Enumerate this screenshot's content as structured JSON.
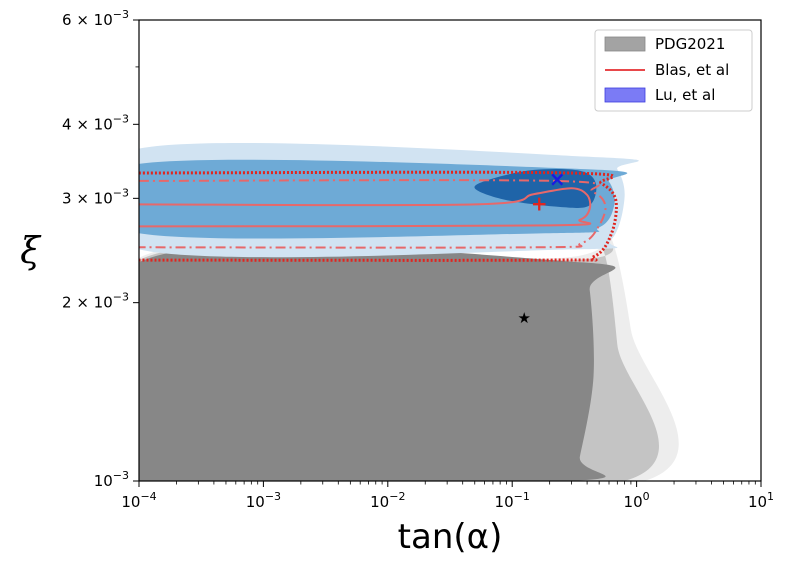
{
  "chart_data": {
    "type": "area",
    "title": "",
    "xlabel": "tan(α)",
    "ylabel": "ξ",
    "x_scale": "log",
    "y_scale": "log",
    "xlim": [
      0.0001,
      10
    ],
    "ylim": [
      0.001,
      0.006
    ],
    "x_ticks": [
      {
        "value": 0.0001,
        "base": "10",
        "exp": "−4"
      },
      {
        "value": 0.001,
        "base": "10",
        "exp": "−3"
      },
      {
        "value": 0.01,
        "base": "10",
        "exp": "−2"
      },
      {
        "value": 0.1,
        "base": "10",
        "exp": "−1"
      },
      {
        "value": 1,
        "base": "10",
        "exp": "0"
      },
      {
        "value": 10,
        "base": "10",
        "exp": "1"
      }
    ],
    "y_ticks": [
      {
        "value": 0.001,
        "mant": "",
        "base": "10",
        "exp": "−3"
      },
      {
        "value": 0.002,
        "mant": "2 × ",
        "base": "10",
        "exp": "−3"
      },
      {
        "value": 0.003,
        "mant": "3 × ",
        "base": "10",
        "exp": "−3"
      },
      {
        "value": 0.004,
        "mant": "4 × ",
        "base": "10",
        "exp": "−3"
      },
      {
        "value": 0.006,
        "mant": "6 × ",
        "base": "10",
        "exp": "−3"
      }
    ],
    "legend": {
      "position": "top-right",
      "entries": [
        {
          "label": "PDG2021",
          "style": "patch",
          "color": "#a3a3a3"
        },
        {
          "label": "Blas, et al",
          "style": "line",
          "color": "#e8474a"
        },
        {
          "label": "Lu, et al",
          "style": "patch",
          "color": "#7b7bf5"
        }
      ]
    },
    "regions": [
      {
        "name": "PDG2021 outer",
        "color": "#ededed",
        "polygon": [
          [
            0.0001,
            0.001
          ],
          [
            0.0001,
            0.00238
          ],
          [
            0.25,
            0.00238
          ],
          [
            0.55,
            0.0027
          ],
          [
            0.9,
            0.0018
          ],
          [
            1.15,
            0.001
          ]
        ]
      },
      {
        "name": "PDG2021 middle",
        "color": "#c4c4c4",
        "polygon": [
          [
            0.0001,
            0.001
          ],
          [
            0.0001,
            0.00236
          ],
          [
            0.3,
            0.00236
          ],
          [
            0.52,
            0.0025
          ],
          [
            0.7,
            0.0017
          ],
          [
            0.8,
            0.001
          ]
        ]
      },
      {
        "name": "PDG2021 inner",
        "color": "#878787",
        "polygon": [
          [
            0.0001,
            0.001
          ],
          [
            0.0001,
            0.00234
          ],
          [
            0.35,
            0.00234
          ],
          [
            0.42,
            0.0021
          ],
          [
            0.45,
            0.0015
          ],
          [
            0.35,
            0.0011
          ],
          [
            0.3,
            0.001
          ]
        ]
      },
      {
        "name": "Lu outer",
        "color": "#d1e3f2",
        "polygon": [
          [
            0.0001,
            0.00246
          ],
          [
            0.0001,
            0.00364
          ],
          [
            0.5,
            0.00352
          ],
          [
            0.7,
            0.00336
          ],
          [
            0.8,
            0.003
          ],
          [
            0.62,
            0.00255
          ],
          [
            0.3,
            0.00246
          ]
        ]
      },
      {
        "name": "Lu middle",
        "color": "#6eaad6",
        "polygon": [
          [
            0.0001,
            0.00262
          ],
          [
            0.0001,
            0.00343
          ],
          [
            0.4,
            0.00336
          ],
          [
            0.6,
            0.0032
          ],
          [
            0.66,
            0.00292
          ],
          [
            0.5,
            0.00268
          ],
          [
            0.2,
            0.00262
          ]
        ]
      },
      {
        "name": "Lu inner",
        "color": "#1f64a8",
        "polygon": [
          [
            0.05,
            0.00312
          ],
          [
            0.07,
            0.00324
          ],
          [
            0.15,
            0.00335
          ],
          [
            0.35,
            0.00334
          ],
          [
            0.47,
            0.00318
          ],
          [
            0.42,
            0.00292
          ],
          [
            0.25,
            0.0029
          ],
          [
            0.09,
            0.00298
          ]
        ]
      }
    ],
    "contours": [
      {
        "name": "Blas outer",
        "color": "#e0251f",
        "dash": "2,2",
        "width": 3,
        "points": [
          [
            0.0001,
            0.00331
          ],
          [
            0.3,
            0.00331
          ],
          [
            0.52,
            0.00318
          ],
          [
            0.68,
            0.00298
          ],
          [
            0.63,
            0.00262
          ],
          [
            0.45,
            0.00239
          ],
          [
            0.2,
            0.00236
          ],
          [
            0.0001,
            0.00236
          ]
        ]
      },
      {
        "name": "Blas dash-dot outer",
        "color": "#e7686a",
        "dash": "10,4,2,4",
        "width": 2,
        "points": [
          [
            0.0001,
            0.00321
          ],
          [
            0.22,
            0.00321
          ],
          [
            0.44,
            0.00308
          ],
          [
            0.56,
            0.00292
          ],
          [
            0.5,
            0.0027
          ],
          [
            0.36,
            0.00252
          ],
          [
            0.15,
            0.00248
          ],
          [
            0.0001,
            0.00248
          ]
        ]
      },
      {
        "name": "Blas solid inner",
        "color": "#e7686a",
        "dash": "",
        "width": 2,
        "points": [
          [
            0.0001,
            0.00293
          ],
          [
            0.05,
            0.00293
          ],
          [
            0.15,
            0.00305
          ],
          [
            0.3,
            0.00312
          ],
          [
            0.4,
            0.00304
          ],
          [
            0.42,
            0.00288
          ],
          [
            0.35,
            0.00276
          ],
          [
            0.2,
            0.0027
          ],
          [
            0.0001,
            0.00269
          ]
        ]
      }
    ],
    "points": [
      {
        "name": "black star",
        "x": 0.125,
        "y": 0.00189,
        "marker": "★",
        "color": "#000000"
      },
      {
        "name": "red plus",
        "x": 0.165,
        "y": 0.00293,
        "marker": "+",
        "color": "#e0251f"
      },
      {
        "name": "blue x",
        "x": 0.23,
        "y": 0.00322,
        "marker": "×",
        "color": "#1a1ae0"
      }
    ]
  }
}
